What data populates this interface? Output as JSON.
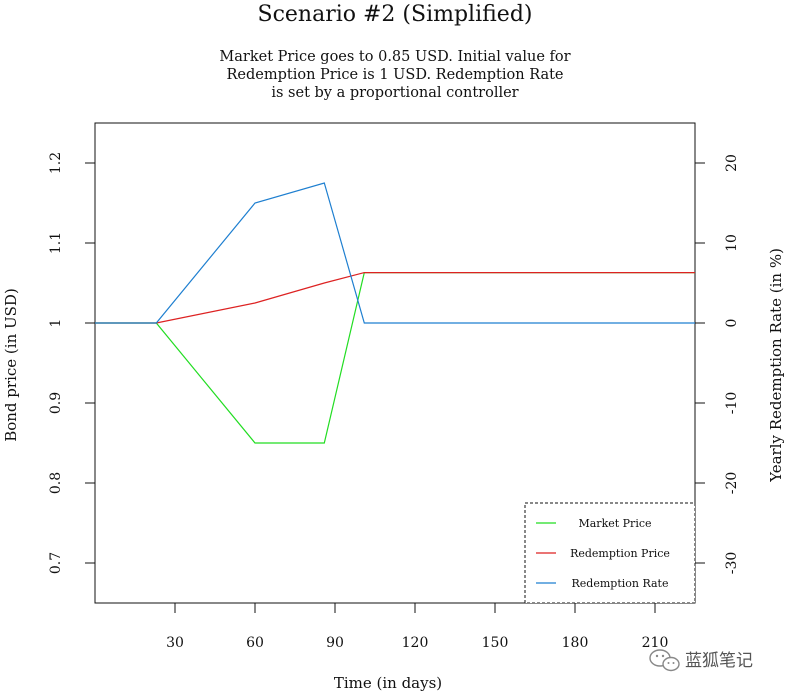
{
  "chart_data": {
    "type": "line",
    "title": "Scenario #2 (Simplified)",
    "subtitle": [
      "Market Price goes to 0.85 USD. Initial value for",
      "Redemption Price is 1 USD. Redemption Rate",
      "is set by a proportional controller"
    ],
    "xlabel": "Time (in days)",
    "ylabel_left": "Bond price (in USD)",
    "ylabel_right": "Yearly Redemption Rate (in %)",
    "xlim": [
      0,
      225
    ],
    "ylim_left": [
      0.65,
      1.25
    ],
    "ylim_right": [
      -35,
      25
    ],
    "x_ticks": [
      30,
      60,
      90,
      120,
      150,
      180,
      210
    ],
    "y_ticks_left": [
      0.7,
      0.8,
      0.9,
      1,
      1.1,
      1.2
    ],
    "y_ticks_left_labels": [
      "0.7",
      "0.8",
      "0.9",
      "1",
      "1.1",
      "1.2"
    ],
    "y_ticks_right": [
      -30,
      -20,
      -10,
      0,
      10,
      20
    ],
    "series": [
      {
        "name": "Market Price",
        "axis": "left",
        "color": "#22dd22",
        "x": [
          0,
          23,
          60,
          86,
          101,
          225
        ],
        "y": [
          1.0,
          1.0,
          0.85,
          0.85,
          1.063,
          1.063
        ]
      },
      {
        "name": "Redemption Price",
        "axis": "left",
        "color": "#dd2222",
        "x": [
          0,
          23,
          60,
          86,
          101,
          225
        ],
        "y": [
          1.0,
          1.0,
          1.025,
          1.05,
          1.063,
          1.063
        ]
      },
      {
        "name": "Redemption Rate",
        "axis": "right",
        "color": "#1e7fd0",
        "x": [
          0,
          23,
          60,
          86,
          101,
          225
        ],
        "y": [
          0,
          0,
          15,
          17.5,
          0,
          0
        ]
      }
    ],
    "legend_position": "bottom-right",
    "grid": false
  },
  "watermark": {
    "text": "蓝狐笔记",
    "icon": "wechat-icon"
  }
}
